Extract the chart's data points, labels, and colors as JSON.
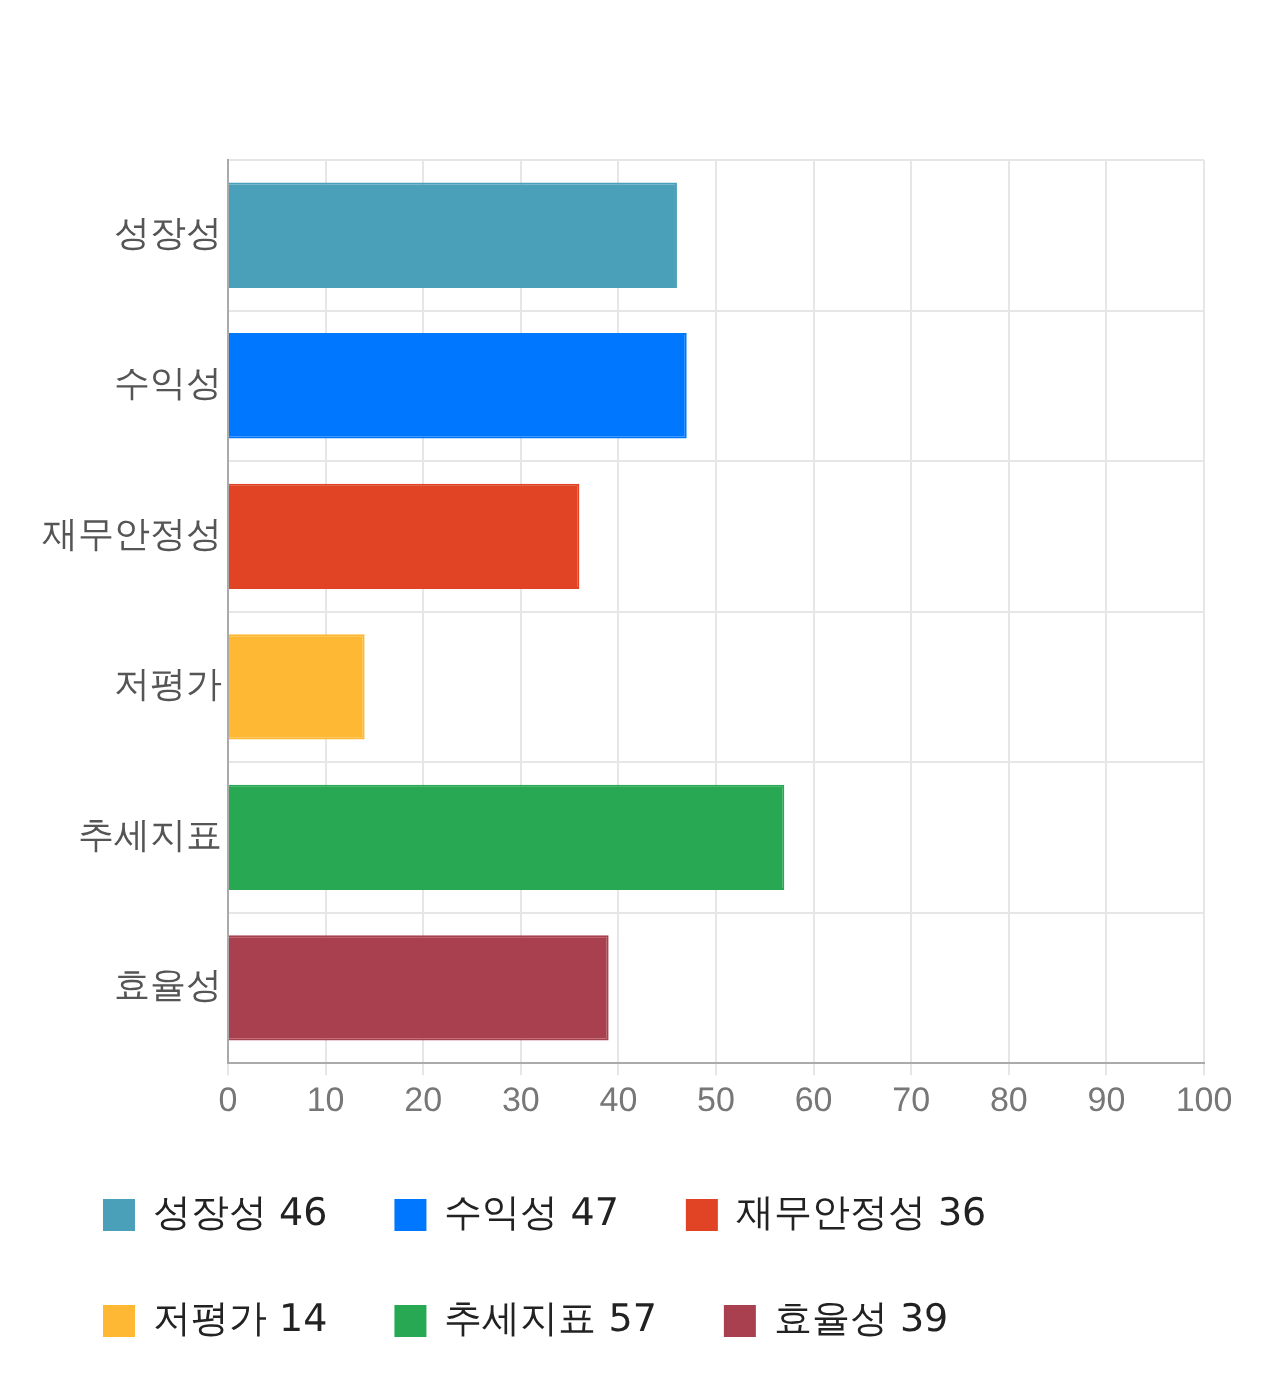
{
  "chart_data": {
    "type": "bar",
    "orientation": "horizontal",
    "stacked": true,
    "categories": [
      "성장성",
      "수익성",
      "재무안정성",
      "저평가",
      "추세지표",
      "효율성"
    ],
    "series": [
      {
        "name": "성장성 46",
        "color": "#4aa0b8",
        "values": [
          46,
          null,
          null,
          null,
          null,
          null
        ]
      },
      {
        "name": "수익성 47",
        "color": "#0077ff",
        "values": [
          null,
          47,
          null,
          null,
          null,
          null
        ]
      },
      {
        "name": "재무안정성 36",
        "color": "#e04424",
        "values": [
          null,
          null,
          36,
          null,
          null,
          null
        ]
      },
      {
        "name": "저평가 14",
        "color": "#ffb833",
        "values": [
          null,
          null,
          null,
          14,
          null,
          null
        ]
      },
      {
        "name": "추세지표 57",
        "color": "#28a853",
        "values": [
          null,
          null,
          null,
          null,
          57,
          null
        ]
      },
      {
        "name": "효율성 39",
        "color": "#a8404f",
        "values": [
          null,
          null,
          null,
          null,
          null,
          39
        ]
      }
    ],
    "xlim": [
      0,
      100
    ],
    "xticks": [
      0,
      10,
      20,
      30,
      40,
      50,
      60,
      70,
      80,
      90,
      100
    ],
    "grid": true,
    "legend": "bottom"
  }
}
